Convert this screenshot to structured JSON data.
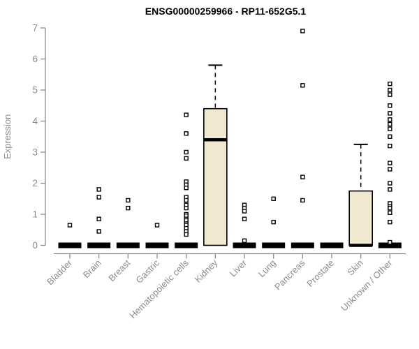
{
  "page": {
    "background": "#ffffff"
  },
  "chart_data": {
    "type": "box",
    "title": "ENSG00000259966 - RP11-652G5.1",
    "xlabel": "",
    "ylabel": "Expression",
    "ylim": [
      0,
      7
    ],
    "yticks": [
      0,
      1,
      2,
      3,
      4,
      5,
      6,
      7
    ],
    "grid": false,
    "legend": false,
    "categories": [
      "Bladder",
      "Brain",
      "Breast",
      "Gastric",
      "Hematopoietic cells",
      "Kidney",
      "Liver",
      "Lung",
      "Pancreas",
      "Prostate",
      "Skin",
      "Unknown / Other"
    ],
    "boxes": [
      {
        "category": "Bladder",
        "q1": 0,
        "median": 0,
        "q3": 0,
        "whisker_low": 0,
        "whisker_high": 0,
        "outliers": [
          0.65
        ]
      },
      {
        "category": "Brain",
        "q1": 0,
        "median": 0,
        "q3": 0,
        "whisker_low": 0,
        "whisker_high": 0,
        "outliers": [
          1.8,
          1.55,
          0.85,
          0.45
        ]
      },
      {
        "category": "Breast",
        "q1": 0,
        "median": 0,
        "q3": 0,
        "whisker_low": 0,
        "whisker_high": 0,
        "outliers": [
          1.45,
          1.2
        ]
      },
      {
        "category": "Gastric",
        "q1": 0,
        "median": 0,
        "q3": 0,
        "whisker_low": 0,
        "whisker_high": 0,
        "outliers": [
          0.65
        ]
      },
      {
        "category": "Hematopoietic cells",
        "q1": 0,
        "median": 0,
        "q3": 0,
        "whisker_low": 0,
        "whisker_high": 0,
        "outliers": [
          4.2,
          3.6,
          3.0,
          2.8,
          2.05,
          1.95,
          1.85,
          1.55,
          1.45,
          1.3,
          1.2,
          1.0,
          0.95,
          0.85,
          0.8,
          0.7,
          0.65,
          0.55,
          0.45,
          0.35
        ]
      },
      {
        "category": "Kidney",
        "q1": 0,
        "median": 3.4,
        "q3": 4.4,
        "whisker_low": 0,
        "whisker_high": 5.8,
        "outliers": []
      },
      {
        "category": "Liver",
        "q1": 0,
        "median": 0,
        "q3": 0,
        "whisker_low": 0,
        "whisker_high": 0,
        "outliers": [
          1.3,
          1.2,
          1.1,
          0.85,
          0.15
        ]
      },
      {
        "category": "Lung",
        "q1": 0,
        "median": 0,
        "q3": 0,
        "whisker_low": 0,
        "whisker_high": 0,
        "outliers": [
          1.5,
          0.75
        ]
      },
      {
        "category": "Pancreas",
        "q1": 0,
        "median": 0,
        "q3": 0,
        "whisker_low": 0,
        "whisker_high": 0,
        "outliers": [
          6.9,
          5.15,
          2.2,
          1.45
        ]
      },
      {
        "category": "Prostate",
        "q1": 0,
        "median": 0,
        "q3": 0,
        "whisker_low": 0,
        "whisker_high": 0,
        "outliers": []
      },
      {
        "category": "Skin",
        "q1": 0,
        "median": 0,
        "q3": 1.75,
        "whisker_low": 0,
        "whisker_high": 3.25,
        "outliers": []
      },
      {
        "category": "Unknown / Other",
        "q1": 0,
        "median": 0,
        "q3": 0,
        "whisker_low": 0,
        "whisker_high": 0,
        "outliers": [
          5.2,
          5.0,
          4.85,
          4.5,
          4.25,
          4.05,
          3.9,
          3.75,
          3.5,
          3.2,
          2.65,
          2.45,
          2.0,
          1.8,
          1.35,
          1.25,
          1.2,
          1.05,
          0.75,
          0.1
        ]
      }
    ],
    "colors": {
      "box_fill": "#F0E9CF",
      "box_stroke": "#000000",
      "median": "#000000",
      "flat_box": "#000000",
      "outlier_stroke": "#000000",
      "outlier_fill": "#ffffff",
      "axis": "#8C8C8C",
      "tick_label": "#8C8C8C",
      "title": "#000000"
    },
    "marker": {
      "shape": "open-square",
      "size": 5
    }
  }
}
